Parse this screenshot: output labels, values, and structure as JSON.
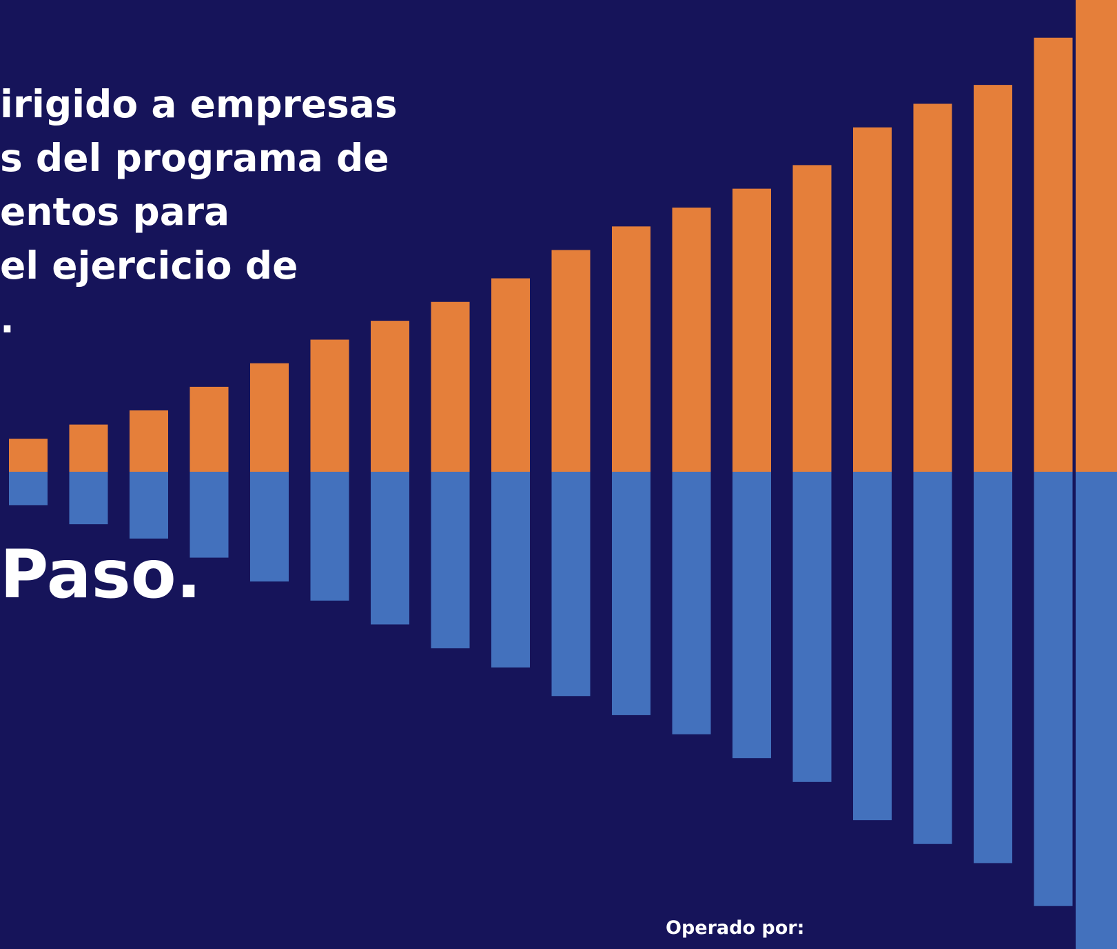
{
  "colors": {
    "background": "#16145a",
    "bar_top": "#e57f3a",
    "bar_bottom": "#4371bd",
    "text": "#ffffff"
  },
  "intro_text": "irigido a empresas\ns del programa de\nentos para\nel ejercicio de\n.",
  "headline": "Paso.",
  "footer_label": "Operado por:",
  "decorative_bars": {
    "up": [
      0.07,
      0.1,
      0.13,
      0.18,
      0.23,
      0.28,
      0.32,
      0.36,
      0.41,
      0.47,
      0.52,
      0.56,
      0.6,
      0.65,
      0.73,
      0.78,
      0.82,
      0.92,
      1.0
    ],
    "down": [
      0.07,
      0.11,
      0.14,
      0.18,
      0.23,
      0.27,
      0.32,
      0.37,
      0.41,
      0.47,
      0.51,
      0.55,
      0.6,
      0.65,
      0.73,
      0.78,
      0.82,
      0.91,
      1.0
    ]
  }
}
